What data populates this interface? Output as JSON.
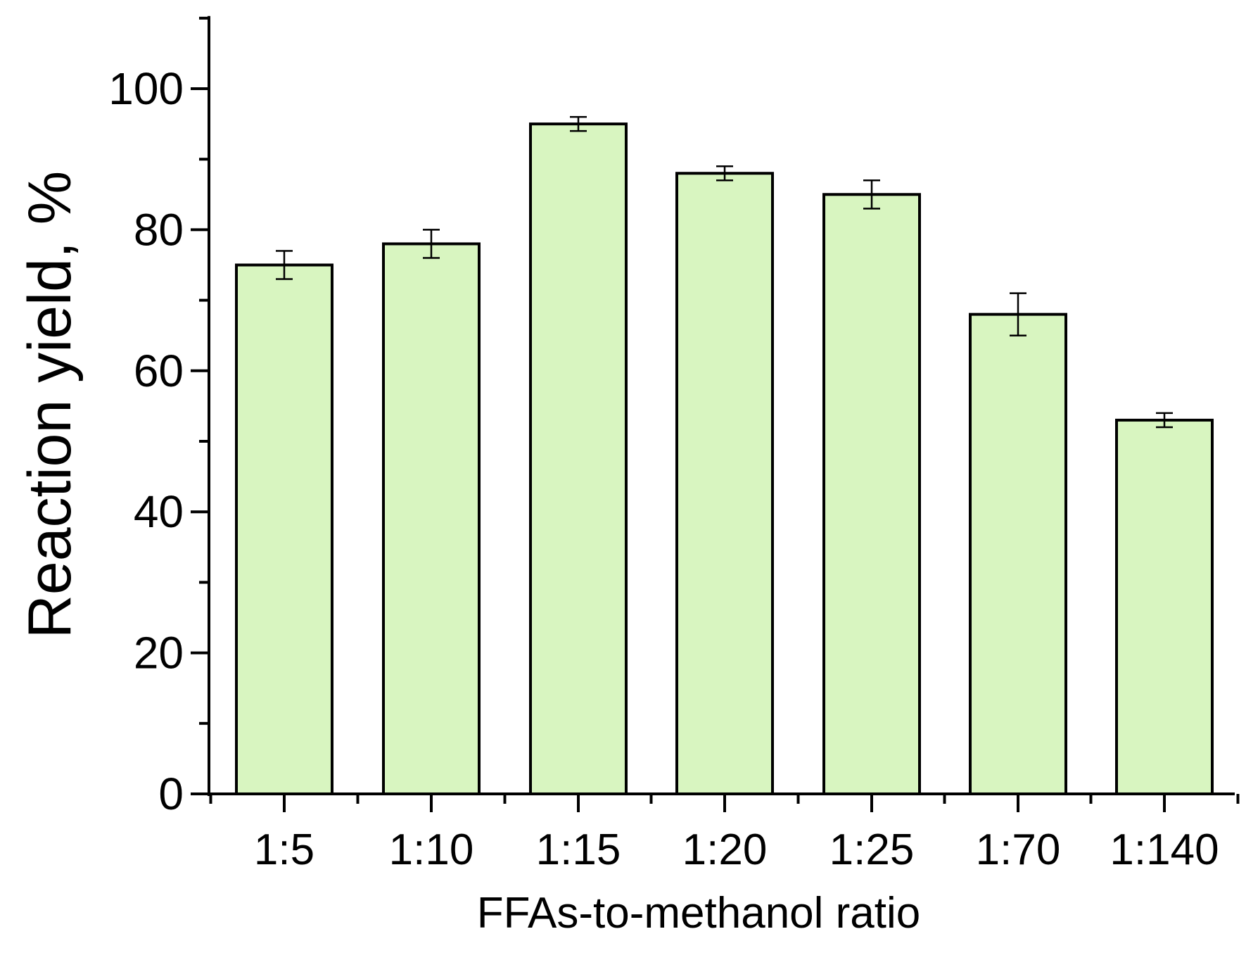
{
  "chart_data": {
    "type": "bar",
    "title": "",
    "xlabel": "FFAs-to-methanol ratio",
    "ylabel": "Reaction yield, %",
    "categories": [
      "1:5",
      "1:10",
      "1:15",
      "1:20",
      "1:25",
      "1:70",
      "1:140"
    ],
    "series": [
      {
        "values": [
          75,
          78,
          95,
          88,
          85,
          68,
          53
        ],
        "errors": [
          2,
          2,
          1,
          1,
          2,
          3,
          1
        ]
      }
    ],
    "ylim": [
      0,
      110
    ],
    "yticks": [
      0,
      20,
      40,
      60,
      80,
      100
    ],
    "grid": false,
    "legend": "none",
    "colors": {
      "bar_fill": "#d8f5c0",
      "bar_stroke": "#000000",
      "axis": "#000000",
      "text": "#000000"
    }
  }
}
